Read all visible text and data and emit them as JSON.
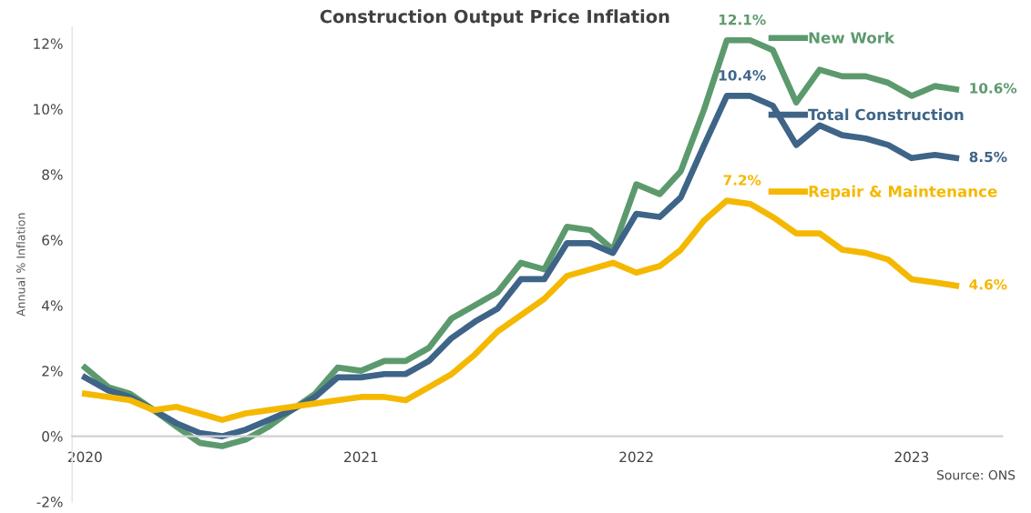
{
  "chart_data": {
    "type": "line",
    "title": "Construction Output Price Inflation",
    "ylabel": "Annual % Inflation",
    "x": [
      "2020-01",
      "2020-02",
      "2020-03",
      "2020-04",
      "2020-05",
      "2020-06",
      "2020-07",
      "2020-08",
      "2020-09",
      "2020-10",
      "2020-11",
      "2020-12",
      "2021-01",
      "2021-02",
      "2021-03",
      "2021-04",
      "2021-05",
      "2021-06",
      "2021-07",
      "2021-08",
      "2021-09",
      "2021-10",
      "2021-11",
      "2021-12",
      "2022-01",
      "2022-02",
      "2022-03",
      "2022-04",
      "2022-05",
      "2022-06",
      "2022-07",
      "2022-08",
      "2022-09",
      "2022-10",
      "2022-11",
      "2022-12",
      "2023-01",
      "2023-02",
      "2023-03"
    ],
    "series": [
      {
        "name": "New Work",
        "color": "#5c9a6e",
        "values": [
          2.1,
          1.5,
          1.3,
          0.8,
          0.3,
          -0.2,
          -0.3,
          -0.1,
          0.3,
          0.8,
          1.3,
          2.1,
          2.0,
          2.3,
          2.3,
          2.7,
          3.6,
          4.0,
          4.4,
          5.3,
          5.1,
          6.4,
          6.3,
          5.7,
          7.7,
          7.4,
          8.1,
          10.0,
          12.1,
          12.1,
          11.8,
          10.2,
          11.2,
          11.0,
          11.0,
          10.8,
          10.4,
          10.7,
          10.6
        ]
      },
      {
        "name": "Total Construction",
        "color": "#3e6488",
        "values": [
          1.8,
          1.4,
          1.2,
          0.8,
          0.4,
          0.1,
          0.0,
          0.2,
          0.5,
          0.8,
          1.2,
          1.8,
          1.8,
          1.9,
          1.9,
          2.3,
          3.0,
          3.5,
          3.9,
          4.8,
          4.8,
          5.9,
          5.9,
          5.6,
          6.8,
          6.7,
          7.3,
          8.9,
          10.4,
          10.4,
          10.1,
          8.9,
          9.5,
          9.2,
          9.1,
          8.9,
          8.5,
          8.6,
          8.5
        ]
      },
      {
        "name": "Repair & Maintenance",
        "color": "#f5b800",
        "values": [
          1.3,
          1.2,
          1.1,
          0.8,
          0.9,
          0.7,
          0.5,
          0.7,
          0.8,
          0.9,
          1.0,
          1.1,
          1.2,
          1.2,
          1.1,
          1.5,
          1.9,
          2.5,
          3.2,
          3.7,
          4.2,
          4.9,
          5.1,
          5.3,
          5.0,
          5.2,
          5.7,
          6.6,
          7.2,
          7.1,
          6.7,
          6.2,
          6.2,
          5.7,
          5.6,
          5.4,
          4.8,
          4.7,
          4.6
        ]
      }
    ],
    "xlim": [
      "2019-12-15",
      "2023-05-01"
    ],
    "xticks": [
      {
        "value": "2020-01",
        "label": "2020"
      },
      {
        "value": "2021-01",
        "label": "2021"
      },
      {
        "value": "2022-01",
        "label": "2022"
      },
      {
        "value": "2023-01",
        "label": "2023"
      }
    ],
    "ylim": [
      -2,
      12.5
    ],
    "yticks": [
      {
        "value": -2,
        "label": "-2%"
      },
      {
        "value": 0,
        "label": "0%"
      },
      {
        "value": 2,
        "label": "2%"
      },
      {
        "value": 4,
        "label": "4%"
      },
      {
        "value": 6,
        "label": "6%"
      },
      {
        "value": 8,
        "label": "8%"
      },
      {
        "value": 10,
        "label": "10%"
      },
      {
        "value": 12,
        "label": "12%"
      }
    ],
    "annotations": [
      {
        "text": "12.1%",
        "x": "2022-05",
        "y": 12.1
      },
      {
        "text": "10.4%",
        "x": "2022-05",
        "y": 10.4
      },
      {
        "text": "7.2%",
        "x": "2022-05",
        "y": 7.2
      },
      {
        "text": "10.6%",
        "x": "2023-03",
        "y": 10.6
      },
      {
        "text": "8.5%",
        "x": "2023-03",
        "y": 8.5
      },
      {
        "text": "4.6%",
        "x": "2023-03",
        "y": 4.6
      },
      "Source: ONS"
    ],
    "grid": false,
    "legend": "top right",
    "marker": "none",
    "line_style": "solid"
  }
}
